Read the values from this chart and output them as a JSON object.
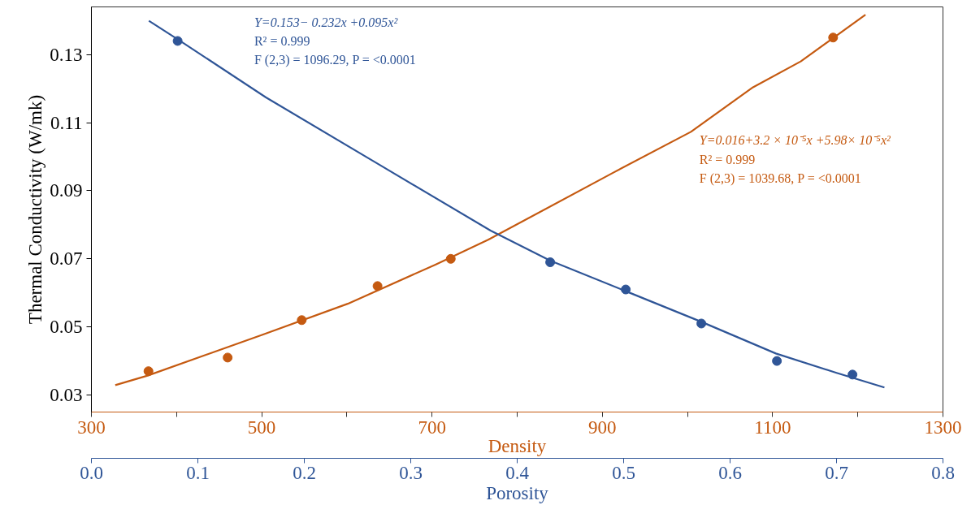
{
  "chart_data": {
    "type": "scatter",
    "xlabel": "Density",
    "x2label": "Porosity",
    "ylabel": "Thermal Conductivity (W/mk)",
    "xlim": [
      300,
      1300
    ],
    "xticks": [
      300,
      {
        "value": 400,
        "label": null
      },
      500,
      {
        "value": 600,
        "label": null
      },
      700,
      {
        "value": 800,
        "label": null
      },
      900,
      {
        "value": 1000,
        "label": null
      },
      1100,
      {
        "value": 1200,
        "label": null
      },
      1300
    ],
    "x2lim": [
      0,
      0.8
    ],
    "x2ticks": [
      {
        "value": 0,
        "label": "0.0"
      },
      0.1,
      0.2,
      0.3,
      0.4,
      0.5,
      0.6,
      0.7,
      0.8
    ],
    "ylim": [
      0.025,
      0.144
    ],
    "yticks": [
      0.03,
      0.05,
      0.07,
      0.09,
      0.11,
      0.13
    ],
    "grid": false,
    "marker": "circle",
    "line_style": "solid",
    "series": [
      {
        "color": "#c55a11",
        "x": [
          367,
          460,
          547,
          636,
          722,
          1171
        ],
        "values": [
          0.037,
          0.041,
          0.052,
          0.062,
          0.07,
          0.135
        ]
      },
      {
        "type": "line",
        "marker": "none",
        "color": "#c55a11",
        "x": [
          328,
          366,
          501,
          601,
          704,
          766,
          912,
          1004,
          1077,
          1133,
          1209
        ],
        "values": [
          0.0329,
          0.0357,
          0.0477,
          0.0568,
          0.0683,
          0.0756,
          0.0952,
          0.1073,
          0.1204,
          0.128,
          0.1417
        ]
      },
      {
        "axis": "x2",
        "color": "#2f5597",
        "x": [
          0.081,
          0.431,
          0.502,
          0.573,
          0.644,
          0.715
        ],
        "values": [
          0.134,
          0.069,
          0.061,
          0.051,
          0.04,
          0.036
        ]
      },
      {
        "type": "line",
        "marker": "none",
        "axis": "x2",
        "color": "#2f5597",
        "x": [
          0.054,
          0.081,
          0.164,
          0.267,
          0.375,
          0.431,
          0.502,
          0.573,
          0.643,
          0.7,
          0.745
        ],
        "values": [
          0.1399,
          0.1345,
          0.1174,
          0.0983,
          0.0783,
          0.0695,
          0.0605,
          0.0515,
          0.0422,
          0.0365,
          0.0322
        ]
      }
    ],
    "annotations": [
      "Y=0.153− 0.232x +0.095x²\nR² = 0.999\nF (2,3) = 1096.29, P = <0.0001",
      "Y=0.016+3.2 × 10⁻⁵x +5.98× 10⁻⁵x²\nR² = 0.999\nF (2,3) = 1039.68, P = <0.0001"
    ]
  }
}
